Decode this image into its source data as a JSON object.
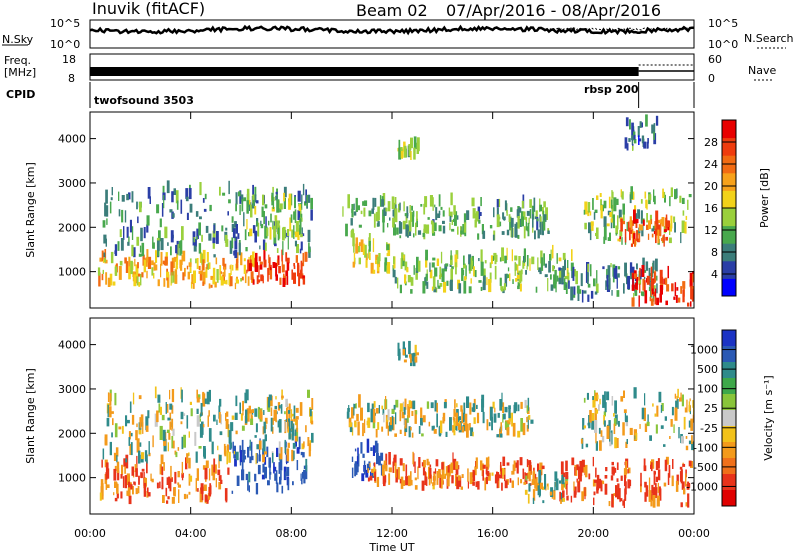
{
  "header": {
    "station": "Inuvik (fitACF)",
    "beam": "Beam 02",
    "date_range": "07/Apr/2016 - 08/Apr/2016"
  },
  "noise_panel": {
    "left_label": "N.Sky",
    "right_label": "N.Search",
    "left_ticks": [
      "10^5",
      "10^0"
    ],
    "right_ticks": [
      "10^5",
      "10^0"
    ]
  },
  "freq_panel": {
    "left_label_1": "Freq.",
    "left_label_2": "[MHz]",
    "left_ticks": [
      "18",
      "8"
    ],
    "right_label": "Nave",
    "right_ticks": [
      "60",
      "0"
    ]
  },
  "cpid_panel": {
    "label": "CPID",
    "programs": [
      "twofsound 3503",
      "rbsp 200"
    ],
    "program_switch_hours": 21.8
  },
  "colors": {
    "power_scale": [
      "#0000ff",
      "#2a3ea6",
      "#3b7d7a",
      "#48a84d",
      "#9ad03c",
      "#f2d21a",
      "#f7a11a",
      "#f26b12",
      "#ef3c0e",
      "#e80000"
    ],
    "velocity_scale": [
      "#1b33c4",
      "#2a59b4",
      "#2f8b8b",
      "#3ea84a",
      "#89c53a",
      "#c9c9c9",
      "#f2c21a",
      "#f39a1b",
      "#f0701a",
      "#e8331a",
      "#e00000"
    ]
  },
  "chart_data": [
    {
      "type": "heatmap",
      "title": "Power",
      "ylabel": "Slant Range [km]",
      "xlabel": "",
      "x_range_hours": [
        0,
        24
      ],
      "ylim": [
        180,
        4600
      ],
      "x_tick_labels": [
        "00:00",
        "04:00",
        "08:00",
        "12:00",
        "16:00",
        "20:00",
        "00:00"
      ],
      "y_tick_values": [
        1000,
        2000,
        3000,
        4000
      ],
      "colorbar": {
        "label": "Power [dB]",
        "range": [
          0,
          32
        ],
        "tick_values": [
          4,
          8,
          12,
          16,
          20,
          24,
          28
        ],
        "tick_labels": [
          "4",
          "8",
          "12",
          "16",
          "20",
          "24",
          "28"
        ]
      },
      "echo_regions": [
        {
          "t0": 0.3,
          "t1": 6.5,
          "r0": 600,
          "r1": 1250,
          "value": 20
        },
        {
          "t0": 6.2,
          "t1": 8.6,
          "r0": 650,
          "r1": 1250,
          "value": 27
        },
        {
          "t0": 0.5,
          "t1": 8.8,
          "r0": 1300,
          "r1": 2800,
          "value": 9
        },
        {
          "t0": 6.0,
          "t1": 8.4,
          "r0": 1700,
          "r1": 2600,
          "value": 14
        },
        {
          "t0": 10.4,
          "t1": 11.9,
          "r0": 900,
          "r1": 1600,
          "value": 16
        },
        {
          "t0": 10.0,
          "t1": 18.2,
          "r0": 1700,
          "r1": 2500,
          "value": 11
        },
        {
          "t0": 12.0,
          "t1": 19.2,
          "r0": 500,
          "r1": 1300,
          "value": 13
        },
        {
          "t0": 18.5,
          "t1": 22.5,
          "r0": 300,
          "r1": 1100,
          "value": 9
        },
        {
          "t0": 19.6,
          "t1": 23.8,
          "r0": 1600,
          "r1": 2700,
          "value": 13
        },
        {
          "t0": 21.0,
          "t1": 23.0,
          "r0": 1550,
          "r1": 2100,
          "value": 26
        },
        {
          "t0": 21.5,
          "t1": 24.0,
          "r0": 200,
          "r1": 900,
          "value": 28
        },
        {
          "t0": 12.2,
          "t1": 13.0,
          "r0": 3500,
          "r1": 3800,
          "value": 14
        },
        {
          "t0": 21.2,
          "t1": 22.5,
          "r0": 3700,
          "r1": 4300,
          "value": 8
        }
      ]
    },
    {
      "type": "heatmap",
      "title": "Velocity",
      "ylabel": "Slant Range [km]",
      "xlabel": "Time UT",
      "x_range_hours": [
        0,
        24
      ],
      "ylim": [
        180,
        4600
      ],
      "x_tick_labels": [
        "00:00",
        "04:00",
        "08:00",
        "12:00",
        "16:00",
        "20:00",
        "00:00"
      ],
      "y_tick_values": [
        1000,
        2000,
        3000,
        4000
      ],
      "colorbar": {
        "label": "Velocity [m s⁻¹]",
        "tick_labels": [
          "1000",
          "500",
          "100",
          "25",
          "-25",
          "-100",
          "-500",
          "-1000"
        ],
        "category_values": [
          1000,
          500,
          100,
          25,
          -25,
          -100,
          -500,
          -1000
        ]
      },
      "echo_regions": [
        {
          "t0": 0.3,
          "t1": 5.5,
          "r0": 400,
          "r1": 1250,
          "value": -300
        },
        {
          "t0": 5.5,
          "t1": 8.6,
          "r0": 600,
          "r1": 1700,
          "value": 600
        },
        {
          "t0": 0.5,
          "t1": 8.8,
          "r0": 1300,
          "r1": 2800,
          "value": 0
        },
        {
          "t0": 6.0,
          "t1": 8.2,
          "r0": 1800,
          "r1": 2600,
          "value": 0
        },
        {
          "t0": 10.4,
          "t1": 11.6,
          "r0": 900,
          "r1": 1700,
          "value": 700
        },
        {
          "t0": 11.0,
          "t1": 18.0,
          "r0": 700,
          "r1": 1300,
          "value": -300
        },
        {
          "t0": 10.2,
          "t1": 17.6,
          "r0": 1900,
          "r1": 2600,
          "value": 0
        },
        {
          "t0": 17.2,
          "t1": 19.0,
          "r0": 400,
          "r1": 1000,
          "value": 60
        },
        {
          "t0": 18.6,
          "t1": 24.0,
          "r0": 300,
          "r1": 1300,
          "value": -400
        },
        {
          "t0": 19.5,
          "t1": 24.0,
          "r0": 1600,
          "r1": 2800,
          "value": 0
        },
        {
          "t0": 12.2,
          "t1": 13.0,
          "r0": 3500,
          "r1": 3800,
          "value": 60
        }
      ]
    }
  ]
}
